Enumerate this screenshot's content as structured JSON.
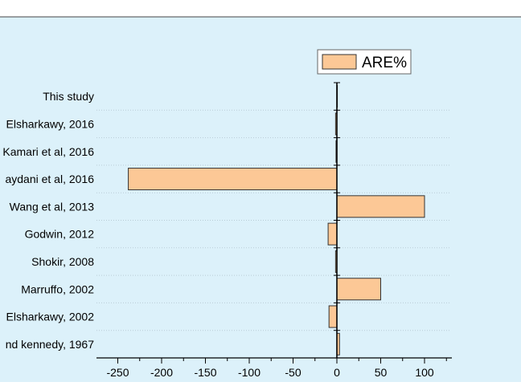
{
  "chart_data": {
    "type": "bar",
    "orientation": "horizontal",
    "categories": [
      "This study",
      "Elsharkawy, 2016",
      "Kamari et al, 2016",
      "aydani et al, 2016",
      "Wang et al, 2013",
      "Godwin, 2012",
      "Shokir, 2008",
      "Marruffo, 2002",
      "Elsharkawy, 2002",
      "nd kennedy, 1967"
    ],
    "series": [
      {
        "name": "ARE%",
        "values": [
          0.2,
          -1.5,
          -1.0,
          -238,
          100,
          -10,
          -1.5,
          50,
          -9,
          3
        ]
      }
    ],
    "xlim": [
      -270,
      130
    ],
    "xticks": [
      -250,
      -200,
      -150,
      -100,
      -50,
      0,
      50,
      100
    ],
    "xlabel": "",
    "ylabel": "",
    "title": "",
    "legend_position": "top-right",
    "grid": "dotted horizontal",
    "colors": {
      "plot_bg": "#dcf1fa",
      "bar_fill": "#fcc896",
      "bar_stroke": "#333333",
      "axis": "#000000",
      "grid": "#b9ccd6"
    }
  }
}
